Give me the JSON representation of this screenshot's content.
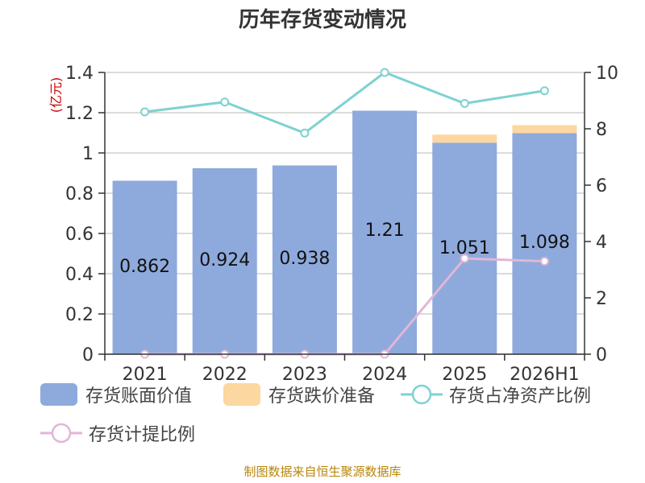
{
  "title": "历年存货变动情况",
  "footer": "制图数据来自恒生聚源数据库",
  "colors": {
    "book_value": "#8eaadc",
    "impairment": "#fdd7a0",
    "ratio_net_assets": "#7fd1d1",
    "provision_ratio": "#e2b6d6",
    "left_axis_label": "#cc0000"
  },
  "chart_data": {
    "type": "bar",
    "title": "历年存货变动情况",
    "categories": [
      "2021",
      "2022",
      "2023",
      "2024",
      "2025",
      "2026H1"
    ],
    "left_axis": {
      "label": "(亿元)",
      "lim": [
        0,
        1.4
      ],
      "ticks": [
        "0",
        "0.2",
        "0.4",
        "0.6",
        "0.8",
        "1",
        "1.2",
        "1.4"
      ]
    },
    "right_axis": {
      "lim": [
        0,
        10
      ],
      "ticks": [
        "0",
        "2",
        "4",
        "6",
        "8",
        "10"
      ]
    },
    "series": [
      {
        "name": "存货账面价值",
        "kind": "bar",
        "axis": "left",
        "values": [
          0.862,
          0.924,
          0.938,
          1.21,
          1.051,
          1.098
        ],
        "labels": [
          "0.862",
          "0.924",
          "0.938",
          "1.21",
          "1.051",
          "1.098"
        ]
      },
      {
        "name": "存货跌价准备",
        "kind": "bar-stack",
        "axis": "left",
        "values": [
          0,
          0,
          0,
          0,
          0.04,
          0.04
        ]
      },
      {
        "name": "存货占净资产比例",
        "kind": "line",
        "axis": "right",
        "values": [
          8.6,
          8.95,
          7.85,
          10.0,
          8.9,
          9.35
        ]
      },
      {
        "name": "存货计提比例",
        "kind": "line",
        "axis": "right",
        "values": [
          0,
          0,
          0,
          0,
          3.4,
          3.3
        ]
      }
    ],
    "grid": true,
    "legend_position": "bottom"
  }
}
